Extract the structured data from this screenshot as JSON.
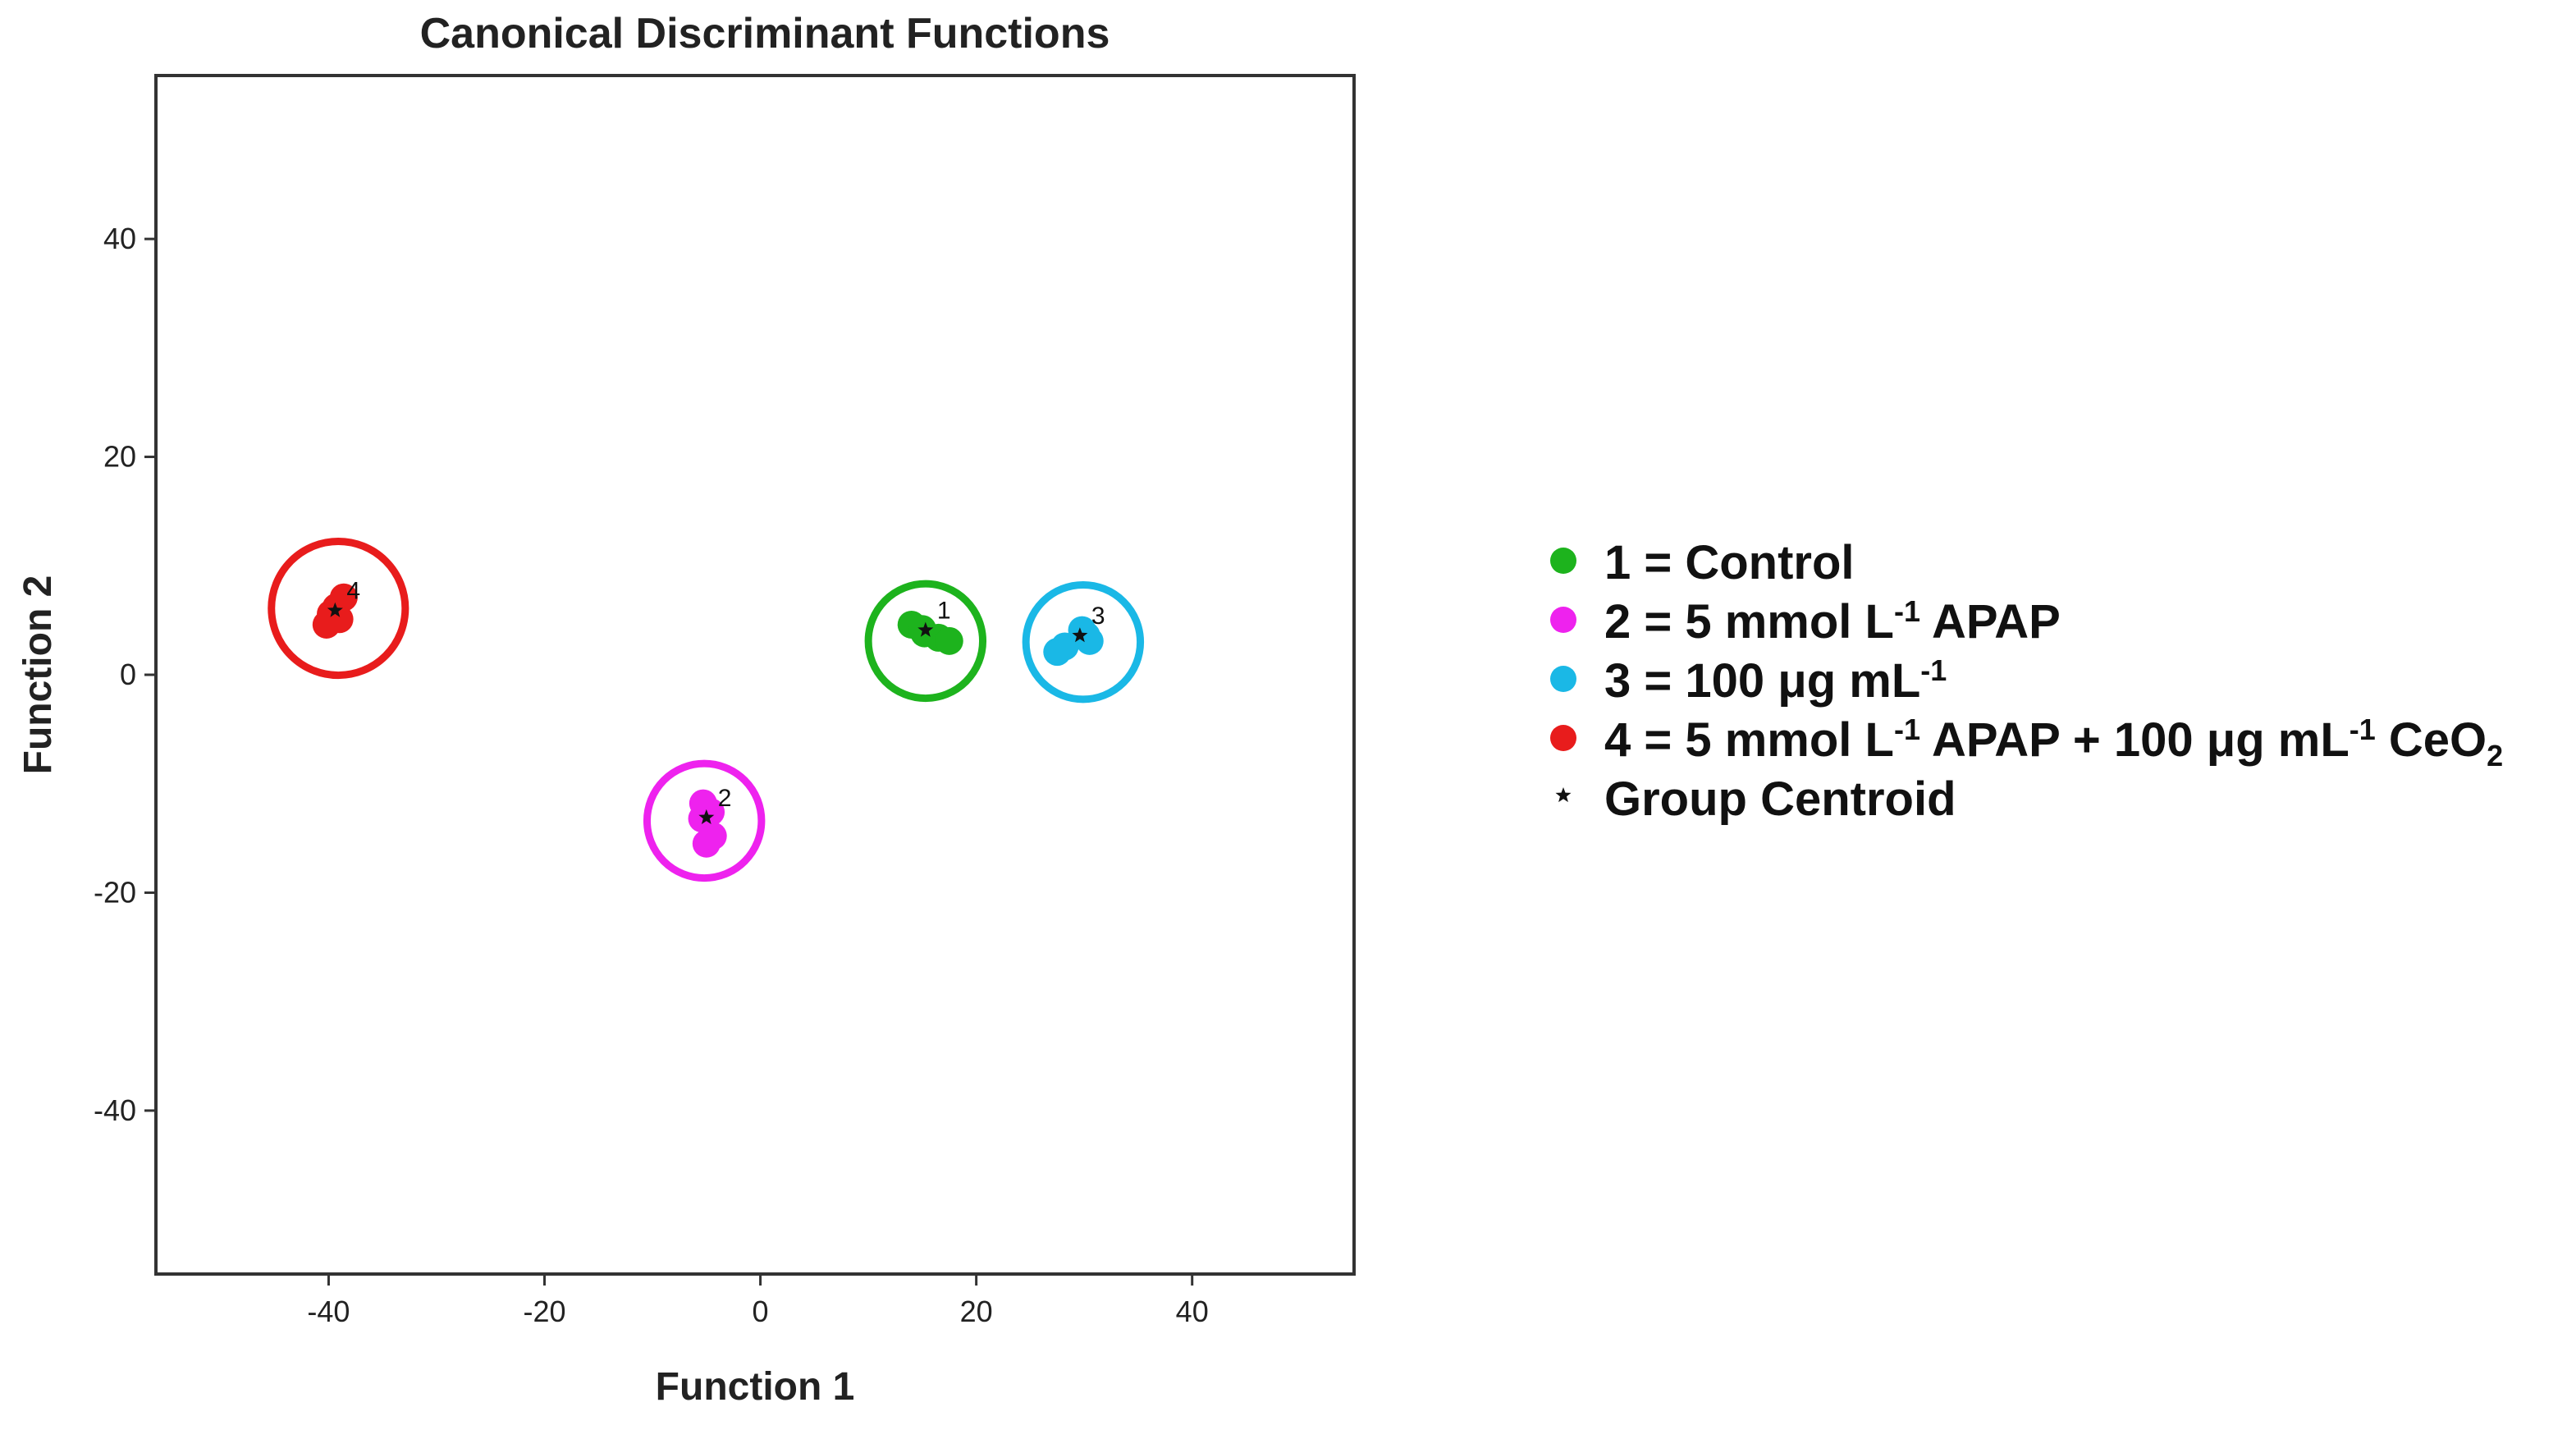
{
  "chart_data": {
    "type": "scatter",
    "title": "Canonical Discriminant Functions",
    "xlabel": "Function 1",
    "ylabel": "Function 2",
    "xlim": [
      -56,
      55
    ],
    "ylim": [
      -55,
      55
    ],
    "xticks": [
      -40,
      -20,
      0,
      20,
      40
    ],
    "yticks": [
      40,
      20,
      0,
      -20,
      -40
    ],
    "grid": false,
    "legend_position": "right",
    "series": [
      {
        "name": "1 = Control",
        "group_label": "1",
        "color": "#1db31d",
        "points": [
          [
            14,
            4.6
          ],
          [
            15.2,
            3.8
          ],
          [
            16.5,
            3.4
          ],
          [
            17.5,
            3.1
          ],
          [
            15,
            4.2
          ]
        ],
        "centroid": [
          15.3,
          4.1
        ],
        "circle_center": [
          15.3,
          3.1
        ],
        "circle_radius": 5.3
      },
      {
        "name": "2 = 5 mmol L",
        "name_sup": "-1",
        "name_after": " APAP",
        "group_label": "2",
        "color": "#ee22ee",
        "points": [
          [
            -5.3,
            -11.8
          ],
          [
            -4.6,
            -12.6
          ],
          [
            -5.0,
            -15.5
          ],
          [
            -4.4,
            -14.8
          ],
          [
            -5.4,
            -13.2
          ]
        ],
        "centroid": [
          -5.0,
          -13.1
        ],
        "circle_center": [
          -5.2,
          -13.4
        ],
        "circle_radius": 5.3
      },
      {
        "name": "3 = 100 μg mL",
        "name_sup": "-1",
        "name_after": "",
        "group_label": "3",
        "color": "#1ab8e6",
        "points": [
          [
            27.5,
            2.1
          ],
          [
            29.8,
            4.1
          ],
          [
            30.5,
            3.1
          ],
          [
            28.2,
            2.6
          ],
          [
            30.2,
            3.6
          ]
        ],
        "centroid": [
          29.6,
          3.6
        ],
        "circle_center": [
          29.9,
          3.0
        ],
        "circle_radius": 5.3
      },
      {
        "name": "4 = 5 mmol L",
        "name_sup": "-1",
        "name_after": " APAP + 100 μg mL",
        "name_sup2": "-1",
        "name_after2": " CeO",
        "name_sub": "2",
        "group_label": "4",
        "color": "#e81c1c",
        "points": [
          [
            -39.8,
            5.6
          ],
          [
            -38.6,
            7.1
          ],
          [
            -40.2,
            4.6
          ],
          [
            -39.3,
            6.2
          ],
          [
            -39.0,
            5.1
          ]
        ],
        "centroid": [
          -39.4,
          5.9
        ],
        "circle_center": [
          -39.1,
          6.1
        ],
        "circle_radius": 6.2
      }
    ],
    "centroid_legend": "Group Centroid"
  }
}
